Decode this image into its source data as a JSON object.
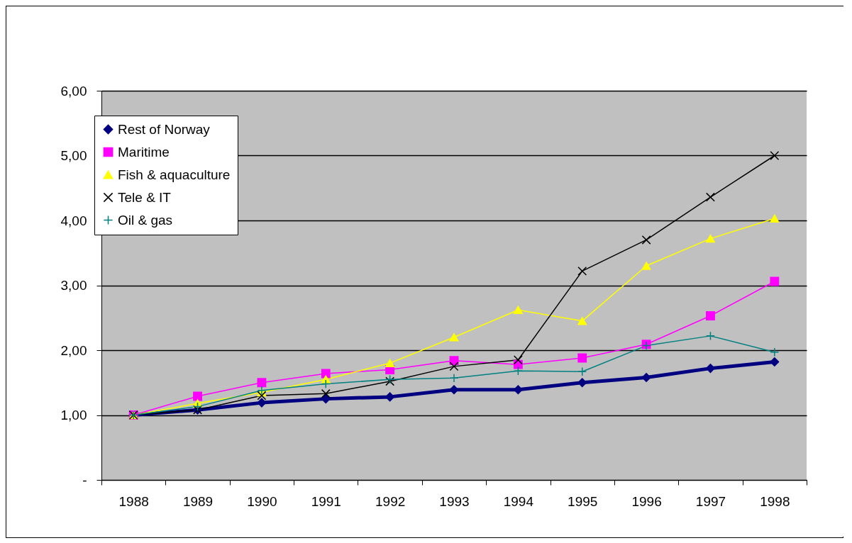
{
  "chart_data": {
    "type": "line",
    "categories": [
      "1988",
      "1989",
      "1990",
      "1991",
      "1992",
      "1993",
      "1994",
      "1995",
      "1996",
      "1997",
      "1998"
    ],
    "ylim": [
      0,
      6
    ],
    "yticks": [
      {
        "value": 0,
        "label": "-"
      },
      {
        "value": 1,
        "label": "1,00"
      },
      {
        "value": 2,
        "label": "2,00"
      },
      {
        "value": 3,
        "label": "3,00"
      },
      {
        "value": 4,
        "label": "4,00"
      },
      {
        "value": 5,
        "label": "5,00"
      },
      {
        "value": 6,
        "label": "6,00"
      }
    ],
    "grid": "y",
    "legend": "top left",
    "series": [
      {
        "name": "Rest of Norway",
        "color": "#000080",
        "marker": "diamond",
        "values": [
          1.0,
          1.08,
          1.19,
          1.25,
          1.28,
          1.39,
          1.39,
          1.5,
          1.58,
          1.72,
          1.82
        ]
      },
      {
        "name": "Maritime",
        "color": "#ff00ff",
        "marker": "square",
        "values": [
          1.0,
          1.29,
          1.5,
          1.64,
          1.7,
          1.84,
          1.78,
          1.88,
          2.09,
          2.53,
          3.06
        ]
      },
      {
        "name": "Fish & aquaculture",
        "color": "#ffff00",
        "marker": "triangle",
        "values": [
          1.0,
          1.18,
          1.35,
          1.55,
          1.8,
          2.2,
          2.62,
          2.45,
          3.3,
          3.72,
          4.03
        ]
      },
      {
        "name": "Tele & IT",
        "color": "#000000",
        "marker": "cross",
        "values": [
          1.0,
          1.08,
          1.3,
          1.33,
          1.52,
          1.75,
          1.85,
          3.22,
          3.7,
          4.36,
          5.0
        ]
      },
      {
        "name": "Oil & gas",
        "color": "#008080",
        "marker": "plus",
        "values": [
          1.0,
          1.13,
          1.38,
          1.48,
          1.55,
          1.57,
          1.68,
          1.67,
          2.07,
          2.22,
          1.97
        ]
      }
    ]
  }
}
